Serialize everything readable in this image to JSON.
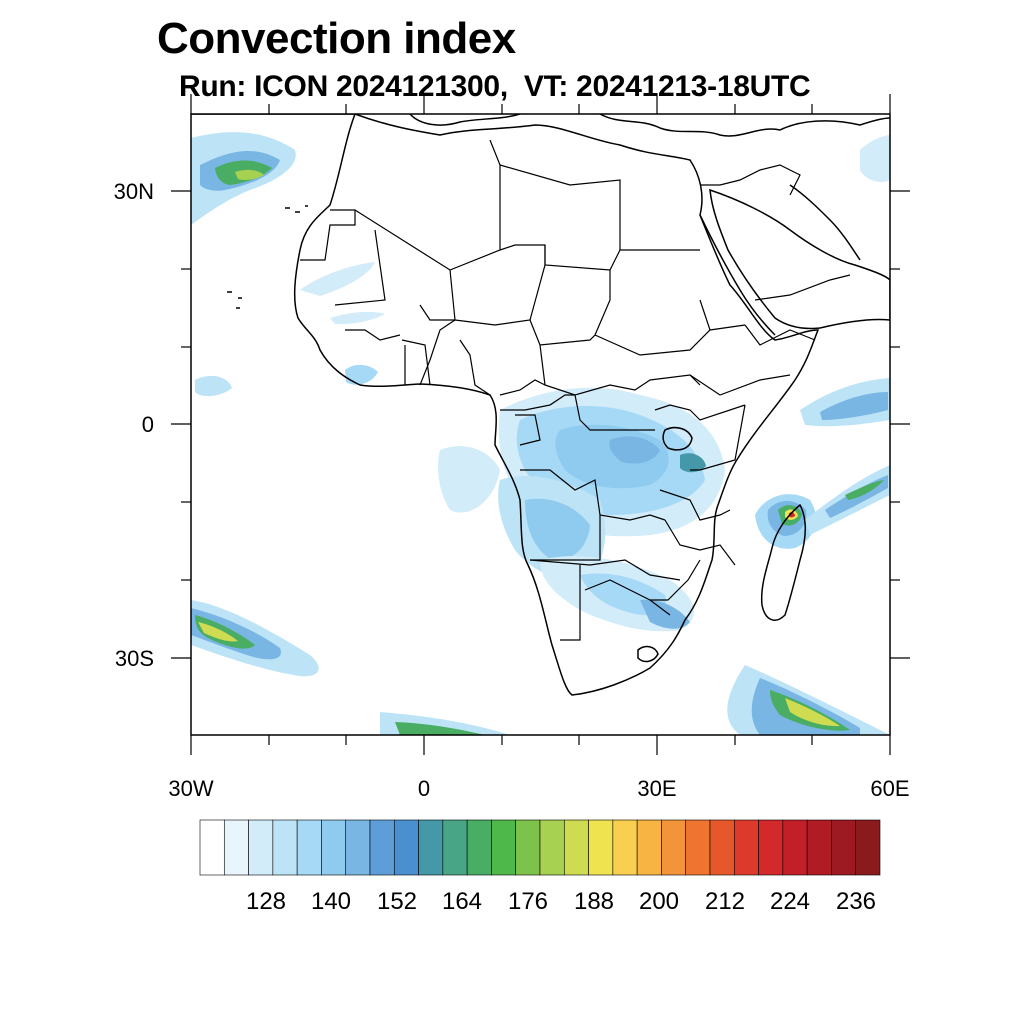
{
  "title": "Convection index",
  "subtitle": "Run: ICON 2024121300,  VT: 20241213-18UTC",
  "axes": {
    "lat_labels": [
      "30N",
      "0",
      "30S"
    ],
    "lon_labels": [
      "30W",
      "0",
      "30E",
      "60E"
    ],
    "lon_range": [
      -30,
      60
    ],
    "lat_range": [
      -40,
      40
    ]
  },
  "colorbar": {
    "labels": [
      "128",
      "140",
      "152",
      "164",
      "176",
      "188",
      "200",
      "212",
      "224",
      "236"
    ],
    "colors": [
      "#ffffff",
      "#e8f5fc",
      "#d2ecf9",
      "#bde3f7",
      "#a6d9f5",
      "#8ecbef",
      "#79b6e4",
      "#5e9ed8",
      "#4a8fcf",
      "#4598a8",
      "#48a686",
      "#49ad63",
      "#4fb84a",
      "#7dc24b",
      "#a7d150",
      "#cfdc52",
      "#efe350",
      "#f9cf4f",
      "#f7b443",
      "#f4943a",
      "#ee7430",
      "#e7572c",
      "#de3a2b",
      "#d4292b",
      "#c31f28",
      "#b01b24",
      "#9d1a22",
      "#8b1a1d"
    ]
  },
  "colors": {
    "coast": "#000000",
    "frame": "#000000"
  }
}
